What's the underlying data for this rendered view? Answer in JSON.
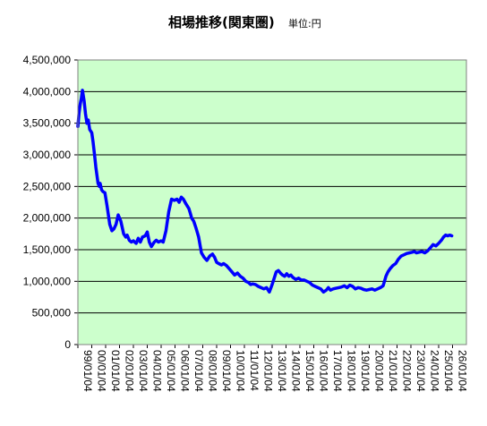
{
  "chart_data": {
    "type": "line",
    "title": "相場推移(関東圏)",
    "unit_label": "単位:円",
    "xlabel": "",
    "ylabel": "",
    "ylim": [
      0,
      4500000
    ],
    "yticks": [
      0,
      500000,
      1000000,
      1500000,
      2000000,
      2500000,
      3000000,
      3500000,
      4000000,
      4500000
    ],
    "ytick_labels": [
      "0",
      "500,000",
      "1,000,000",
      "1,500,000",
      "2,000,000",
      "2,500,000",
      "3,000,000",
      "3,500,000",
      "4,000,000",
      "4,500,000"
    ],
    "x_tick_labels": [
      "99/01/04",
      "00/01/04",
      "01/01/04",
      "02/01/04",
      "03/01/04",
      "04/01/04",
      "05/01/04",
      "06/01/04",
      "07/01/04",
      "08/01/04",
      "09/01/04",
      "10/01/04",
      "11/01/04",
      "12/01/04",
      "13/01/04",
      "14/01/04",
      "15/01/04",
      "16/01/04",
      "17/01/04",
      "18/01/04",
      "19/01/04",
      "20/01/04",
      "21/01/04",
      "22/01/04",
      "23/01/04",
      "24/01/04",
      "25/01/04",
      "26/01/04"
    ],
    "grid": true,
    "plot_background": "#ccffcc",
    "series": [
      {
        "color": "#0000ff",
        "x": [
          1999.0,
          1999.08,
          1999.17,
          1999.25,
          1999.33,
          1999.45,
          1999.55,
          1999.65,
          1999.75,
          1999.85,
          2000.0,
          2000.1,
          2000.2,
          2000.3,
          2000.45,
          2000.55,
          2000.6,
          2000.7,
          2000.8,
          2000.95,
          2001.1,
          2001.3,
          2001.45,
          2001.6,
          2001.75,
          2001.9,
          2002.1,
          2002.3,
          2002.45,
          2002.55,
          2002.7,
          2002.85,
          2003.0,
          2003.2,
          2003.35,
          2003.5,
          2003.65,
          2003.85,
          2004.0,
          2004.15,
          2004.3,
          2004.5,
          2004.65,
          2004.8,
          2005.0,
          2005.15,
          2005.35,
          2005.55,
          2005.75,
          2005.95,
          2006.15,
          2006.3,
          2006.45,
          2006.6,
          2006.8,
          2007.0,
          2007.1,
          2007.2,
          2007.35,
          2007.5,
          2007.7,
          2007.9,
          2008.1,
          2008.3,
          2008.5,
          2008.7,
          2008.85,
          2009.0,
          2009.15,
          2009.35,
          2009.5,
          2009.7,
          2009.9,
          2010.1,
          2010.3,
          2010.5,
          2010.7,
          2010.9,
          2011.1,
          2011.3,
          2011.45,
          2011.6,
          2011.8,
          2012.0,
          2012.2,
          2012.4,
          2012.6,
          2012.8,
          2013.0,
          2013.15,
          2013.3,
          2013.45,
          2013.6,
          2013.75,
          2013.9,
          2014.05,
          2014.2,
          2014.35,
          2014.5,
          2014.7,
          2014.9,
          2015.1,
          2015.3,
          2015.5,
          2015.7,
          2015.9,
          2016.1,
          2016.3,
          2016.5,
          2016.7,
          2016.9,
          2017.05,
          2017.2,
          2017.4,
          2017.6,
          2017.8,
          2018.0,
          2018.2,
          2018.4,
          2018.6,
          2018.8,
          2019.0,
          2019.2,
          2019.4,
          2019.6,
          2019.8,
          2020.0,
          2020.2,
          2020.4,
          2020.6,
          2020.8,
          2021.0,
          2021.1,
          2021.2,
          2021.35,
          2021.5,
          2021.7,
          2021.9,
          2022.1,
          2022.3,
          2022.5,
          2022.7,
          2022.9,
          2023.1,
          2023.25,
          2023.4,
          2023.6,
          2023.8,
          2024.0,
          2024.2,
          2024.4,
          2024.6,
          2024.8,
          2025.0,
          2025.2,
          2025.35,
          2025.5,
          2025.65,
          2025.8,
          2025.95
        ],
        "values": [
          3450000,
          3650000,
          3800000,
          3900000,
          4020000,
          3850000,
          3650000,
          3500000,
          3550000,
          3400000,
          3350000,
          3200000,
          3000000,
          2800000,
          2550000,
          2500000,
          2550000,
          2450000,
          2420000,
          2400000,
          2200000,
          1900000,
          1800000,
          1830000,
          1900000,
          2050000,
          1950000,
          1750000,
          1700000,
          1730000,
          1650000,
          1620000,
          1640000,
          1600000,
          1680000,
          1620000,
          1700000,
          1720000,
          1780000,
          1620000,
          1550000,
          1620000,
          1650000,
          1620000,
          1640000,
          1620000,
          1800000,
          2100000,
          2300000,
          2280000,
          2300000,
          2250000,
          2330000,
          2300000,
          2220000,
          2150000,
          2080000,
          2000000,
          1950000,
          1850000,
          1700000,
          1450000,
          1380000,
          1330000,
          1400000,
          1430000,
          1380000,
          1300000,
          1280000,
          1260000,
          1280000,
          1250000,
          1200000,
          1150000,
          1100000,
          1130000,
          1080000,
          1050000,
          1000000,
          980000,
          950000,
          960000,
          950000,
          920000,
          900000,
          880000,
          900000,
          830000,
          950000,
          1050000,
          1150000,
          1170000,
          1130000,
          1100000,
          1080000,
          1120000,
          1080000,
          1100000,
          1060000,
          1030000,
          1050000,
          1020000,
          1020000,
          1000000,
          980000,
          940000,
          920000,
          900000,
          880000,
          830000,
          860000,
          900000,
          860000,
          880000,
          890000,
          900000,
          910000,
          930000,
          900000,
          940000,
          920000,
          880000,
          900000,
          890000,
          870000,
          860000,
          870000,
          880000,
          860000,
          880000,
          900000,
          930000,
          1000000,
          1080000,
          1150000,
          1200000,
          1250000,
          1280000,
          1350000,
          1400000,
          1420000,
          1440000,
          1450000,
          1460000,
          1470000,
          1450000,
          1460000,
          1470000,
          1450000,
          1480000,
          1530000,
          1580000,
          1560000,
          1600000,
          1650000,
          1700000,
          1730000,
          1720000,
          1730000,
          1720000
        ]
      }
    ]
  }
}
